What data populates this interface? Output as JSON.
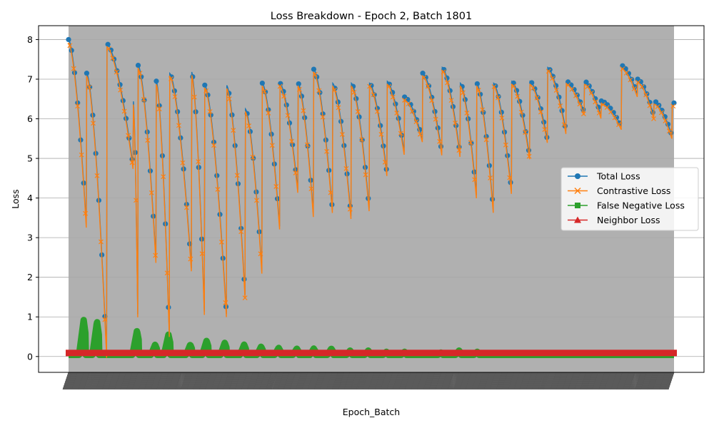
{
  "chart_data": {
    "type": "line",
    "title": "Loss Breakdown - Epoch 2, Batch 1801",
    "xlabel": "Epoch_Batch",
    "ylabel": "Loss",
    "ylim": [
      -0.4,
      8.35
    ],
    "yticks": [
      0,
      1,
      2,
      3,
      4,
      5,
      6,
      7,
      8
    ],
    "grid": "y-only",
    "legend_position": "center-right",
    "plot_background": "#b0b0b0",
    "x_points": 1800,
    "segments": [
      {
        "start": 0.0,
        "end": 0.03,
        "top": 8.0,
        "bottom": 3.15
      },
      {
        "start": 0.03,
        "end": 0.063,
        "top": 7.15,
        "bottom": 0.0
      },
      {
        "start": 0.063,
        "end": 0.107,
        "top": 7.9,
        "bottom": 4.75
      },
      {
        "start": 0.107,
        "end": 0.115,
        "top": 6.45,
        "bottom": 0.2
      },
      {
        "start": 0.115,
        "end": 0.145,
        "top": 7.35,
        "bottom": 2.25
      },
      {
        "start": 0.145,
        "end": 0.167,
        "top": 6.95,
        "bottom": 0.3
      },
      {
        "start": 0.167,
        "end": 0.203,
        "top": 7.15,
        "bottom": 2.2
      },
      {
        "start": 0.203,
        "end": 0.225,
        "top": 7.2,
        "bottom": 0.8
      },
      {
        "start": 0.225,
        "end": 0.261,
        "top": 6.85,
        "bottom": 1.0
      },
      {
        "start": 0.261,
        "end": 0.292,
        "top": 6.85,
        "bottom": 1.4
      },
      {
        "start": 0.292,
        "end": 0.32,
        "top": 6.25,
        "bottom": 2.0
      },
      {
        "start": 0.32,
        "end": 0.349,
        "top": 6.9,
        "bottom": 3.2
      },
      {
        "start": 0.349,
        "end": 0.379,
        "top": 6.9,
        "bottom": 4.15
      },
      {
        "start": 0.379,
        "end": 0.405,
        "top": 6.9,
        "bottom": 3.45
      },
      {
        "start": 0.405,
        "end": 0.436,
        "top": 7.25,
        "bottom": 3.65
      },
      {
        "start": 0.436,
        "end": 0.467,
        "top": 6.9,
        "bottom": 3.45
      },
      {
        "start": 0.467,
        "end": 0.497,
        "top": 6.9,
        "bottom": 3.65
      },
      {
        "start": 0.497,
        "end": 0.526,
        "top": 6.9,
        "bottom": 4.6
      },
      {
        "start": 0.526,
        "end": 0.555,
        "top": 6.95,
        "bottom": 5.1
      },
      {
        "start": 0.555,
        "end": 0.585,
        "top": 6.55,
        "bottom": 5.45
      },
      {
        "start": 0.585,
        "end": 0.617,
        "top": 7.15,
        "bottom": 5.1
      },
      {
        "start": 0.617,
        "end": 0.647,
        "top": 7.3,
        "bottom": 5.05
      },
      {
        "start": 0.647,
        "end": 0.674,
        "top": 6.9,
        "bottom": 4.0
      },
      {
        "start": 0.674,
        "end": 0.702,
        "top": 6.9,
        "bottom": 3.6
      },
      {
        "start": 0.702,
        "end": 0.732,
        "top": 6.9,
        "bottom": 4.1
      },
      {
        "start": 0.732,
        "end": 0.762,
        "top": 6.95,
        "bottom": 5.0
      },
      {
        "start": 0.762,
        "end": 0.791,
        "top": 6.95,
        "bottom": 5.45
      },
      {
        "start": 0.791,
        "end": 0.822,
        "top": 7.3,
        "bottom": 5.65
      },
      {
        "start": 0.822,
        "end": 0.852,
        "top": 6.95,
        "bottom": 6.15
      },
      {
        "start": 0.852,
        "end": 0.88,
        "top": 6.95,
        "bottom": 6.05
      },
      {
        "start": 0.88,
        "end": 0.913,
        "top": 6.45,
        "bottom": 5.8
      },
      {
        "start": 0.913,
        "end": 0.94,
        "top": 7.35,
        "bottom": 6.6
      },
      {
        "start": 0.94,
        "end": 0.967,
        "top": 7.0,
        "bottom": 6.05
      },
      {
        "start": 0.967,
        "end": 0.997,
        "top": 6.45,
        "bottom": 5.55
      },
      {
        "start": 0.997,
        "end": 1.0,
        "top": 6.4,
        "bottom": 6.4
      }
    ],
    "false_negative_bumps": [
      {
        "center": 0.025,
        "height": 0.92
      },
      {
        "center": 0.047,
        "height": 0.88
      },
      {
        "center": 0.113,
        "height": 0.65
      },
      {
        "center": 0.143,
        "height": 0.3
      },
      {
        "center": 0.165,
        "height": 0.55
      },
      {
        "center": 0.201,
        "height": 0.3
      },
      {
        "center": 0.228,
        "height": 0.4
      },
      {
        "center": 0.258,
        "height": 0.35
      },
      {
        "center": 0.29,
        "height": 0.3
      },
      {
        "center": 0.318,
        "height": 0.25
      },
      {
        "center": 0.347,
        "height": 0.22
      },
      {
        "center": 0.377,
        "height": 0.2
      },
      {
        "center": 0.405,
        "height": 0.2
      },
      {
        "center": 0.434,
        "height": 0.2
      },
      {
        "center": 0.465,
        "height": 0.15
      },
      {
        "center": 0.495,
        "height": 0.15
      },
      {
        "center": 0.525,
        "height": 0.12
      },
      {
        "center": 0.555,
        "height": 0.12
      },
      {
        "center": 0.615,
        "height": 0.1
      },
      {
        "center": 0.645,
        "height": 0.15
      },
      {
        "center": 0.675,
        "height": 0.12
      }
    ],
    "neighbor_loss_value": 0.09,
    "series": [
      {
        "name": "Total Loss",
        "color": "#1f77b4",
        "marker": "circle"
      },
      {
        "name": "Contrastive Loss",
        "color": "#ff7f0e",
        "marker": "x"
      },
      {
        "name": "False Negative Loss",
        "color": "#2ca02c",
        "marker": "square"
      },
      {
        "name": "Neighbor Loss",
        "color": "#d62728",
        "marker": "triangle"
      }
    ]
  }
}
